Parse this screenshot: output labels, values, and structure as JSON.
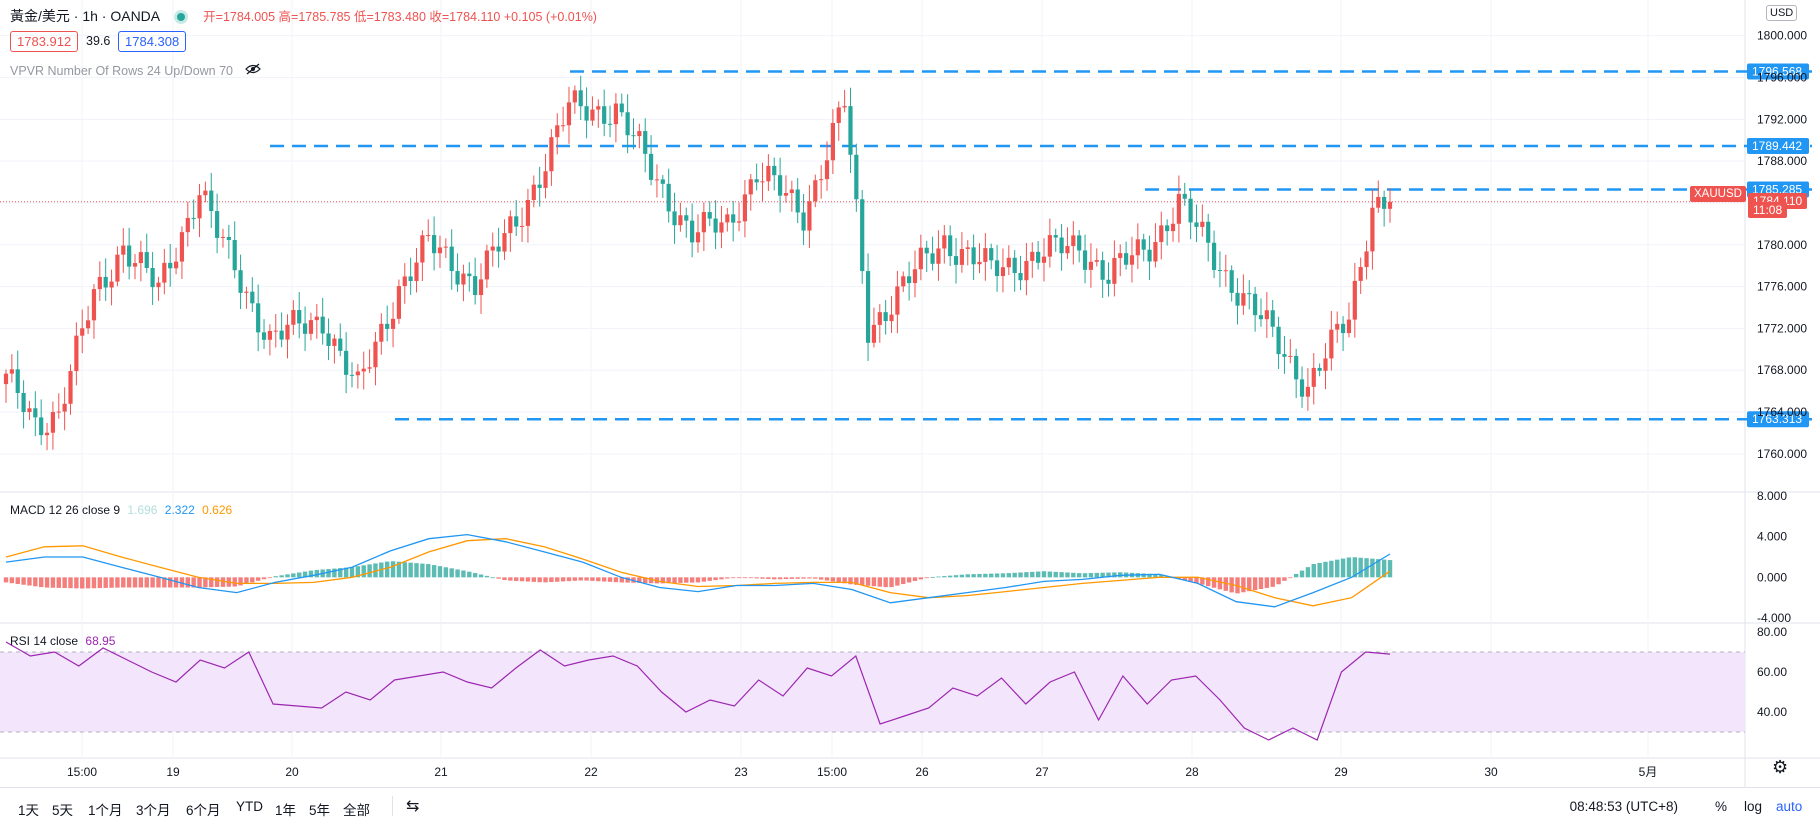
{
  "legend": {
    "symbol": "黃金/美元 · 1h · OANDA",
    "ohlc": "开=1784.005 高=1785.785 低=1783.480 收=1784.110 +0.105 (+0.01%)"
  },
  "quote": {
    "bid": "1783.912",
    "spread": "39.6",
    "ask": "1784.308"
  },
  "vpvr_label": "VPVR Number Of Rows 24 Up/Down 70",
  "currency": "USD",
  "symbol_tag": "XAUUSD",
  "last_price": "1784.110",
  "countdown": "11:08",
  "macd": {
    "label": "MACD 12 26 close 9",
    "v1": "1.696",
    "v2": "2.322",
    "v3": "0.626"
  },
  "rsi": {
    "label": "RSI 14 close",
    "value": "68.95"
  },
  "timeframes": [
    "1天",
    "5天",
    "1个月",
    "3个月",
    "6个月",
    "YTD",
    "1年",
    "5年",
    "全部"
  ],
  "clock": "08:48:53 (UTC+8)",
  "bottom_right": {
    "pct": "%",
    "log": "log",
    "auto": "auto"
  },
  "colors": {
    "up": "#ef5350",
    "down": "#26a69a",
    "level": "#2196f3",
    "macd": "#2196f3",
    "signal": "#ff9800",
    "rsi": "#9c27b0",
    "rsi_band": "#f3e5fc"
  },
  "chart_data": [
    {
      "type": "candlestick",
      "title": "黃金/美元 · 1h · OANDA",
      "x_tick_labels": [
        "15:00",
        "19",
        "20",
        "21",
        "22",
        "23",
        "15:00",
        "26",
        "27",
        "28",
        "29",
        "30",
        "5月"
      ],
      "y_ticks": [
        1760,
        1764,
        1768,
        1772,
        1776,
        1780,
        1784,
        1788,
        1792,
        1796,
        1800
      ],
      "ylim": [
        1757.5,
        1801.5
      ],
      "levels": [
        {
          "label": "1796.568",
          "value": 1796.568
        },
        {
          "label": "1789.442",
          "value": 1789.442
        },
        {
          "label": "1785.285",
          "value": 1785.285
        },
        {
          "label": "1763.313",
          "value": 1763.313
        }
      ],
      "last_price": 1784.11,
      "close_anchors": [
        {
          "i": 0,
          "c": 1767.0
        },
        {
          "i": 5,
          "c": 1763.0
        },
        {
          "i": 9,
          "c": 1764.0
        },
        {
          "i": 15,
          "c": 1775.0
        },
        {
          "i": 20,
          "c": 1780.0
        },
        {
          "i": 26,
          "c": 1775.5
        },
        {
          "i": 33,
          "c": 1785.5
        },
        {
          "i": 36,
          "c": 1781.0
        },
        {
          "i": 45,
          "c": 1771.0
        },
        {
          "i": 54,
          "c": 1773.0
        },
        {
          "i": 60,
          "c": 1766.0
        },
        {
          "i": 67,
          "c": 1776.0
        },
        {
          "i": 72,
          "c": 1780.0
        },
        {
          "i": 80,
          "c": 1776.5
        },
        {
          "i": 87,
          "c": 1782.0
        },
        {
          "i": 96,
          "c": 1793.0
        },
        {
          "i": 104,
          "c": 1793.0
        },
        {
          "i": 110,
          "c": 1787.0
        },
        {
          "i": 117,
          "c": 1781.0
        },
        {
          "i": 123,
          "c": 1782.0
        },
        {
          "i": 128,
          "c": 1787.0
        },
        {
          "i": 136,
          "c": 1783.0
        },
        {
          "i": 143,
          "c": 1793.5
        },
        {
          "i": 147,
          "c": 1772.0
        },
        {
          "i": 153,
          "c": 1776.0
        },
        {
          "i": 160,
          "c": 1780.5
        },
        {
          "i": 168,
          "c": 1777.5
        },
        {
          "i": 176,
          "c": 1779.0
        },
        {
          "i": 183,
          "c": 1780.0
        },
        {
          "i": 188,
          "c": 1777.0
        },
        {
          "i": 195,
          "c": 1780.0
        },
        {
          "i": 200,
          "c": 1784.0
        },
        {
          "i": 207,
          "c": 1778.0
        },
        {
          "i": 215,
          "c": 1772.0
        },
        {
          "i": 222,
          "c": 1766.5
        },
        {
          "i": 229,
          "c": 1773.0
        },
        {
          "i": 233,
          "c": 1784.0
        },
        {
          "i": 236,
          "c": 1784.11
        }
      ],
      "macd_range": [
        -4,
        8
      ],
      "macd_ticks": [
        8,
        4,
        0,
        -4
      ],
      "macd_line": [
        1.5,
        2.0,
        2.0,
        1.0,
        0,
        -1.0,
        -1.5,
        -0.5,
        0.2,
        1.0,
        2.6,
        3.8,
        4.2,
        3.5,
        2.5,
        1.5,
        0,
        -1.0,
        -1.4,
        -0.8,
        -0.8,
        -0.6,
        -1.2,
        -2.5,
        -2.0,
        -1.5,
        -1.0,
        -0.4,
        -0.2,
        0.2,
        0.3,
        -0.6,
        -2.4,
        -2.9,
        -1.5,
        0,
        2.3
      ],
      "signal_line": [
        2.0,
        3.0,
        3.1,
        2.0,
        1.0,
        0,
        -0.6,
        -0.6,
        -0.5,
        0,
        1.0,
        2.5,
        3.6,
        3.8,
        3.0,
        1.8,
        0.5,
        -0.4,
        -0.9,
        -0.8,
        -0.6,
        -0.5,
        -0.5,
        -1.5,
        -2.0,
        -1.8,
        -1.4,
        -1.0,
        -0.6,
        -0.3,
        0,
        0,
        -0.8,
        -2.0,
        -2.8,
        -2.0,
        0.6
      ],
      "rsi_range": [
        20,
        82
      ],
      "rsi_ticks": [
        80,
        60,
        40
      ],
      "rsi_bands": [
        70,
        30
      ],
      "rsi_line": [
        75,
        68,
        70,
        63,
        72,
        66,
        60,
        55,
        66,
        62,
        70,
        44,
        43,
        42,
        50,
        46,
        56,
        58,
        60,
        55,
        52,
        62,
        71,
        63,
        66,
        68,
        63,
        50,
        40,
        46,
        43,
        56,
        48,
        62,
        58,
        68,
        34,
        38,
        42,
        52,
        48,
        57,
        44,
        55,
        60,
        36,
        58,
        44,
        56,
        58,
        46,
        32,
        26,
        32,
        26,
        60,
        70,
        68.95
      ]
    }
  ]
}
